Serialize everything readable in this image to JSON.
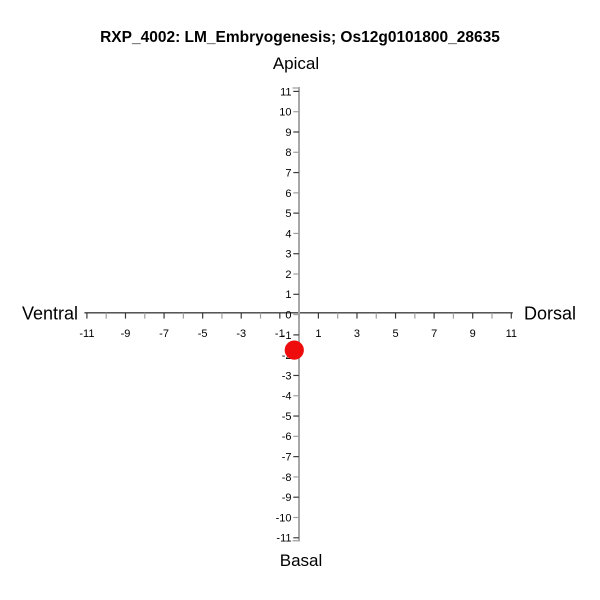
{
  "chart_data": {
    "type": "scatter",
    "title": "RXP_4002: LM_Embryogenesis; Os12g0101800_28635",
    "orientation_labels": {
      "top": "Apical",
      "bottom": "Basal",
      "left": "Ventral",
      "right": "Dorsal"
    },
    "xlim": [
      -11,
      11
    ],
    "ylim": [
      -11,
      11
    ],
    "x_tick_step": 1,
    "y_tick_step": 1,
    "x_labeled_ticks": [
      -11,
      -9,
      -7,
      -5,
      -3,
      -1,
      1,
      3,
      5,
      7,
      9,
      11
    ],
    "y_labeled_ticks": [
      -11,
      -10,
      -9,
      -8,
      -7,
      -6,
      -5,
      -4,
      -3,
      -2,
      -1,
      0,
      1,
      2,
      3,
      4,
      5,
      6,
      7,
      8,
      9,
      10,
      11
    ],
    "grid": false,
    "legend": false,
    "points": [
      {
        "x": -0.25,
        "y": -1.75
      }
    ],
    "colors": {
      "point": "#ee0c0c",
      "x_axis_line": "#3f3f3f",
      "y_axis_line": "#a8a8a8",
      "major_tick": "#3a3a3a",
      "minor_tick": "#9e9e9e",
      "text": "#000000"
    }
  }
}
